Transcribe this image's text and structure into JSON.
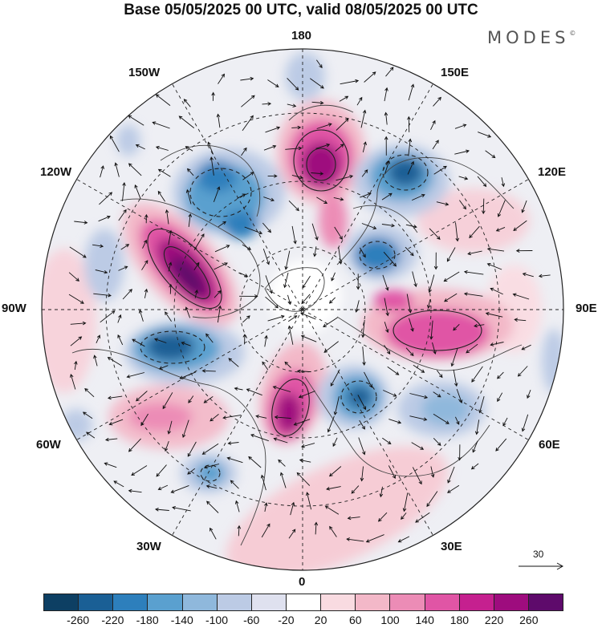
{
  "title": "Base 05/05/2025 00 UTC, valid 08/05/2025 00 UTC",
  "brand": {
    "name": "MODES",
    "mark": "©"
  },
  "longitudes": {
    "top": "180",
    "bottom": "0",
    "left": "90W",
    "right": "90E",
    "upper_left_1": "150W",
    "upper_left_2": "120W",
    "lower_left_1": "60W",
    "lower_left_2": "30W",
    "upper_right_1": "150E",
    "upper_right_2": "120E",
    "lower_right_1": "60E",
    "lower_right_2": "30E"
  },
  "vector_reference": {
    "value": "30"
  },
  "colorbar": {
    "colors": [
      "#0d3f63",
      "#1a5f95",
      "#2d7fbc",
      "#5aa0cf",
      "#8fb8dc",
      "#bccbe5",
      "#dfe1ef",
      "#ffffff",
      "#f9dbe1",
      "#f3b8c8",
      "#ec8cb6",
      "#e055a5",
      "#c5208f",
      "#9e0c7e",
      "#5e0a6b"
    ],
    "labels": [
      "-260",
      "-220",
      "-180",
      "-140",
      "-100",
      "-60",
      "-20",
      "20",
      "60",
      "100",
      "140",
      "180",
      "220",
      "260"
    ]
  }
}
